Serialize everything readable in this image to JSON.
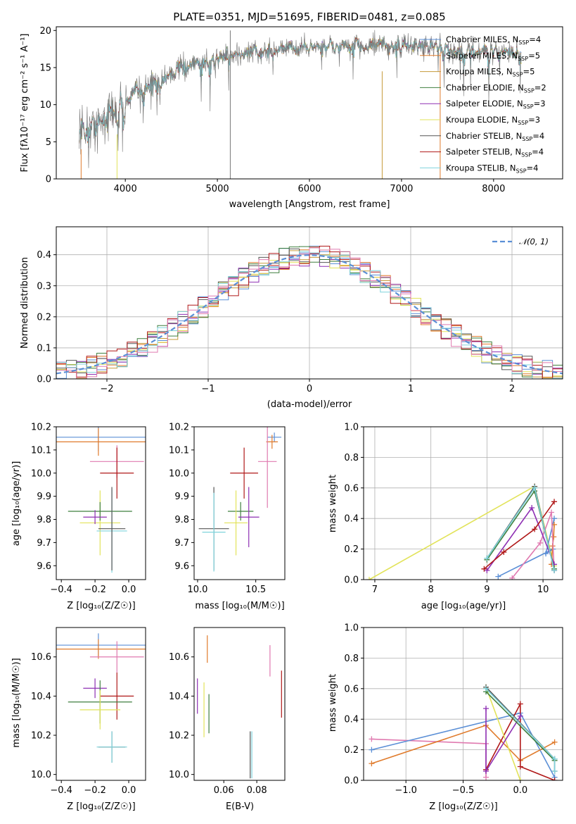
{
  "colors": {
    "Chabrier MILES": "#5b8fd6",
    "Salpeter MILES": "#e07b2c",
    "Kroupa MILES": "#c59a3a",
    "Chabrier ELODIE": "#3f7f3f",
    "Salpeter ELODIE": "#8e2fb3",
    "Kroupa ELODIE": "#e2e35a",
    "Chabrier STELIB": "#555555",
    "Salpeter STELIB": "#b01818",
    "Kroupa STELIB": "#7fd3dc",
    "pink": "#e07ab0",
    "normal": "#5b8fd6"
  },
  "chart_data": [
    {
      "id": "spectrum",
      "type": "line",
      "title": "PLATE=0351, MJD=51695, FIBERID=0481, z=0.085",
      "xlabel": "wavelength [Angstrom, rest frame]",
      "ylabel": "Flux [fλ10⁻¹⁷ erg cm⁻² s⁻¹ A⁻¹]",
      "xlim": [
        3250,
        8750
      ],
      "ylim": [
        0,
        20.5
      ],
      "xticks": [
        4000,
        5000,
        6000,
        7000,
        8000
      ],
      "yticks": [
        0,
        5,
        10,
        15,
        20
      ],
      "grid": false,
      "legend_position": "upper right",
      "legend": [
        {
          "name": "Chabrier MILES",
          "nssp": "4"
        },
        {
          "name": "Salpeter MILES",
          "nssp": "5"
        },
        {
          "name": "Kroupa MILES",
          "nssp": "5"
        },
        {
          "name": "Chabrier ELODIE",
          "nssp": "2"
        },
        {
          "name": "Salpeter ELODIE",
          "nssp": "3"
        },
        {
          "name": "Kroupa ELODIE",
          "nssp": "3"
        },
        {
          "name": "Chabrier STELIB",
          "nssp": "4"
        },
        {
          "name": "Salpeter STELIB",
          "nssp": "4"
        },
        {
          "name": "Kroupa STELIB",
          "nssp": "4"
        }
      ],
      "continuum": {
        "x": [
          3500,
          3700,
          3900,
          4100,
          4300,
          4600,
          5000,
          5400,
          5800,
          6200,
          6600,
          7000,
          7400,
          7800,
          8300
        ],
        "y": [
          6.5,
          7.5,
          9.0,
          11.5,
          13.0,
          14.8,
          16.3,
          17.0,
          17.6,
          17.9,
          18.0,
          17.9,
          17.6,
          17.3,
          17.0
        ]
      }
    },
    {
      "id": "residuals",
      "type": "histogram",
      "xlabel": "(data-model)/error",
      "ylabel": "Normed distribution",
      "xlim": [
        -2.5,
        2.5
      ],
      "ylim": [
        0,
        0.49
      ],
      "xticks": [
        -2,
        -1,
        0,
        1,
        2
      ],
      "yticks": [
        0.0,
        0.1,
        0.2,
        0.3,
        0.4
      ],
      "grid": true,
      "legend_position": "upper right",
      "legend_label": "𝒩(0, 1)",
      "bin_width": 0.1
    },
    {
      "id": "age_vs_Z",
      "type": "errorbar",
      "xlabel": "Z [log₁₀(Z/Z☉)]",
      "ylabel": "age  [log₁₀(age/yr)]",
      "xlim": [
        -0.43,
        0.1
      ],
      "ylim": [
        9.54,
        10.2
      ],
      "xticks": [
        -0.4,
        -0.2,
        0.0
      ],
      "yticks": [
        9.6,
        9.7,
        9.8,
        9.9,
        10.0,
        10.1,
        10.2
      ],
      "points": [
        {
          "c": "Chabrier MILES",
          "x": -0.18,
          "xerr": 0.28,
          "y": 10.155,
          "yerr": 0.06
        },
        {
          "c": "Salpeter MILES",
          "x": -0.18,
          "xerr": 0.28,
          "y": 10.135,
          "yerr": 0.06
        },
        {
          "c": "pink",
          "x": -0.07,
          "xerr": 0.16,
          "y": 10.05,
          "yerr": 0.07
        },
        {
          "c": "Salpeter STELIB",
          "x": -0.07,
          "xerr": 0.1,
          "y": 10.0,
          "yerr": 0.11
        },
        {
          "c": "Kroupa ELODIE",
          "x": -0.17,
          "xerr": 0.12,
          "y": 9.785,
          "yerr": 0.14
        },
        {
          "c": "Chabrier ELODIE",
          "x": -0.17,
          "xerr": 0.19,
          "y": 9.835,
          "yerr": 0.04
        },
        {
          "c": "Salpeter ELODIE",
          "x": -0.2,
          "xerr": 0.07,
          "y": 9.81,
          "yerr": 0.03
        },
        {
          "c": "Kroupa STELIB",
          "x": -0.1,
          "xerr": 0.09,
          "y": 9.75,
          "yerr": 0.18
        },
        {
          "c": "Chabrier STELIB",
          "x": -0.1,
          "xerr": 0.08,
          "y": 9.76,
          "yerr": 0.18
        }
      ]
    },
    {
      "id": "age_vs_mass",
      "type": "errorbar",
      "xlabel": "mass [log₁₀(M/M☉)]",
      "ylabel": "",
      "xlim": [
        9.97,
        10.75
      ],
      "ylim": [
        9.54,
        10.2
      ],
      "xticks": [
        10.0,
        10.5
      ],
      "yticks": [
        9.6,
        9.7,
        9.8,
        9.9,
        10.0,
        10.1,
        10.2
      ],
      "points": [
        {
          "c": "Chabrier MILES",
          "x": 10.66,
          "xerr": 0.06,
          "y": 10.155,
          "yerr": 0.02
        },
        {
          "c": "Salpeter MILES",
          "x": 10.64,
          "xerr": 0.05,
          "y": 10.135,
          "yerr": 0.03
        },
        {
          "c": "pink",
          "x": 10.6,
          "xerr": 0.08,
          "y": 10.05,
          "yerr": 0.2
        },
        {
          "c": "Salpeter STELIB",
          "x": 10.4,
          "xerr": 0.12,
          "y": 10.0,
          "yerr": 0.11
        },
        {
          "c": "Chabrier ELODIE",
          "x": 10.37,
          "xerr": 0.11,
          "y": 9.835,
          "yerr": 0.04
        },
        {
          "c": "Kroupa ELODIE",
          "x": 10.33,
          "xerr": 0.1,
          "y": 9.785,
          "yerr": 0.14
        },
        {
          "c": "Salpeter ELODIE",
          "x": 10.44,
          "xerr": 0.09,
          "y": 9.81,
          "yerr": 0.13
        },
        {
          "c": "Chabrier STELIB",
          "x": 10.14,
          "xerr": 0.13,
          "y": 9.76,
          "yerr": 0.18
        },
        {
          "c": "Kroupa STELIB",
          "x": 10.14,
          "xerr": 0.1,
          "y": 9.745,
          "yerr": 0.17
        }
      ]
    },
    {
      "id": "weight_vs_age",
      "type": "line",
      "xlabel": "age  [log₁₀(age/yr)]",
      "ylabel": "mass weight",
      "xlim": [
        6.8,
        10.35
      ],
      "ylim": [
        0,
        1
      ],
      "xticks": [
        7,
        8,
        9,
        10
      ],
      "yticks": [
        0.0,
        0.2,
        0.4,
        0.6,
        0.8,
        1.0
      ],
      "grid": true,
      "series": [
        {
          "c": "Kroupa ELODIE",
          "x": [
            6.9,
            9.85,
            10.2
          ],
          "y": [
            0.0,
            0.61,
            0.09
          ]
        },
        {
          "c": "Chabrier MILES",
          "x": [
            9.2,
            10.18,
            10.05,
            10.2
          ],
          "y": [
            0.02,
            0.2,
            0.17,
            0.4
          ]
        },
        {
          "c": "Salpeter MILES",
          "x": [
            10.15,
            10.17,
            10.19,
            10.2
          ],
          "y": [
            0.1,
            0.22,
            0.28,
            0.36
          ]
        },
        {
          "c": "pink",
          "x": [
            9.45,
            9.95,
            10.15,
            10.2
          ],
          "y": [
            0.01,
            0.24,
            0.44,
            0.06
          ]
        },
        {
          "c": "Salpeter ELODIE",
          "x": [
            9.0,
            9.8,
            10.2
          ],
          "y": [
            0.06,
            0.47,
            0.1
          ]
        },
        {
          "c": "Salpeter STELIB",
          "x": [
            8.95,
            9.3,
            9.85,
            10.2
          ],
          "y": [
            0.07,
            0.18,
            0.33,
            0.51
          ]
        },
        {
          "c": "Chabrier STELIB",
          "x": [
            9.0,
            9.85,
            10.2
          ],
          "y": [
            0.14,
            0.61,
            0.06
          ]
        },
        {
          "c": "Chabrier ELODIE",
          "x": [
            9.0,
            9.85,
            10.2
          ],
          "y": [
            0.13,
            0.58,
            0.07
          ]
        },
        {
          "c": "Kroupa STELIB",
          "x": [
            9.0,
            9.85,
            10.2
          ],
          "y": [
            0.14,
            0.6,
            0.06
          ]
        }
      ]
    },
    {
      "id": "mass_vs_Z",
      "type": "errorbar",
      "xlabel": "Z [log₁₀(Z/Z☉)]",
      "ylabel": "mass [log₁₀(M/M☉)]",
      "xlim": [
        -0.43,
        0.1
      ],
      "ylim": [
        9.97,
        10.75
      ],
      "xticks": [
        -0.4,
        -0.2,
        0.0
      ],
      "yticks": [
        10.0,
        10.2,
        10.4,
        10.6
      ],
      "points": [
        {
          "c": "Chabrier MILES",
          "x": -0.18,
          "xerr": 0.28,
          "y": 10.66,
          "yerr": 0.06
        },
        {
          "c": "Salpeter MILES",
          "x": -0.18,
          "xerr": 0.28,
          "y": 10.64,
          "yerr": 0.05
        },
        {
          "c": "pink",
          "x": -0.07,
          "xerr": 0.16,
          "y": 10.6,
          "yerr": 0.08
        },
        {
          "c": "Salpeter STELIB",
          "x": -0.07,
          "xerr": 0.1,
          "y": 10.4,
          "yerr": 0.12
        },
        {
          "c": "Salpeter ELODIE",
          "x": -0.2,
          "xerr": 0.07,
          "y": 10.44,
          "yerr": 0.05
        },
        {
          "c": "Chabrier ELODIE",
          "x": -0.17,
          "xerr": 0.19,
          "y": 10.37,
          "yerr": 0.11
        },
        {
          "c": "Kroupa ELODIE",
          "x": -0.17,
          "xerr": 0.12,
          "y": 10.33,
          "yerr": 0.1
        },
        {
          "c": "Chabrier STELIB",
          "x": -0.1,
          "xerr": 0.08,
          "y": 10.14,
          "yerr": 0.08
        },
        {
          "c": "Kroupa STELIB",
          "x": -0.1,
          "xerr": 0.09,
          "y": 10.14,
          "yerr": 0.08
        }
      ]
    },
    {
      "id": "mass_vs_ebv",
      "type": "errorbar",
      "xlabel": "E(B-V)",
      "ylabel": "",
      "xlim": [
        0.042,
        0.097
      ],
      "ylim": [
        9.97,
        10.75
      ],
      "xticks": [
        0.06,
        0.08
      ],
      "yticks": [
        10.0,
        10.2,
        10.4,
        10.6
      ],
      "points": [
        {
          "c": "Salpeter ELODIE",
          "x": 0.044,
          "xerr": 0,
          "y": 10.4,
          "yerr": 0.09
        },
        {
          "c": "Kroupa ELODIE",
          "x": 0.048,
          "xerr": 0,
          "y": 10.33,
          "yerr": 0.14
        },
        {
          "c": "Salpeter MILES",
          "x": 0.05,
          "xerr": 0,
          "y": 10.64,
          "yerr": 0.07
        },
        {
          "c": "Chabrier ELODIE",
          "x": 0.051,
          "xerr": 0,
          "y": 10.31,
          "yerr": 0.1
        },
        {
          "c": "Chabrier STELIB",
          "x": 0.076,
          "xerr": 0,
          "y": 10.1,
          "yerr": 0.12
        },
        {
          "c": "Kroupa STELIB",
          "x": 0.077,
          "xerr": 0,
          "y": 10.1,
          "yerr": 0.12
        },
        {
          "c": "pink",
          "x": 0.088,
          "xerr": 0,
          "y": 10.58,
          "yerr": 0.08
        },
        {
          "c": "Salpeter STELIB",
          "x": 0.095,
          "xerr": 0,
          "y": 10.41,
          "yerr": 0.12
        }
      ]
    },
    {
      "id": "weight_vs_Z",
      "type": "line",
      "xlabel": "Z [log₁₀(Z/Z☉)]",
      "ylabel": "mass weight",
      "xlim": [
        -1.37,
        0.37
      ],
      "ylim": [
        0,
        1
      ],
      "xticks": [
        -1.0,
        -0.5,
        0.0
      ],
      "yticks": [
        0.0,
        0.2,
        0.4,
        0.6,
        0.8,
        1.0
      ],
      "grid": true,
      "series": [
        {
          "c": "pink",
          "x": [
            -1.3,
            -0.3,
            -0.3
          ],
          "y": [
            0.27,
            0.24,
            0.02
          ]
        },
        {
          "c": "Chabrier MILES",
          "x": [
            -1.3,
            0.0,
            0.3
          ],
          "y": [
            0.2,
            0.44,
            0.02
          ]
        },
        {
          "c": "Salpeter MILES",
          "x": [
            -1.3,
            -0.3,
            0.0,
            0.3
          ],
          "y": [
            0.11,
            0.36,
            0.13,
            0.25
          ]
        },
        {
          "c": "Salpeter STELIB",
          "x": [
            -0.3,
            0.0,
            0.0,
            0.3
          ],
          "y": [
            0.07,
            0.5,
            0.09,
            0.0
          ]
        },
        {
          "c": "Kroupa ELODIE",
          "x": [
            -0.3,
            0.0
          ],
          "y": [
            0.61,
            0.0
          ]
        },
        {
          "c": "Salpeter ELODIE",
          "x": [
            -0.3,
            -0.3,
            0.0
          ],
          "y": [
            0.47,
            0.06,
            0.42
          ]
        },
        {
          "c": "Chabrier STELIB",
          "x": [
            -0.3,
            0.3,
            0.3
          ],
          "y": [
            0.61,
            0.14,
            0.06
          ]
        },
        {
          "c": "Chabrier ELODIE",
          "x": [
            -0.3,
            0.3
          ],
          "y": [
            0.58,
            0.13
          ]
        },
        {
          "c": "Kroupa STELIB",
          "x": [
            -0.3,
            0.3,
            0.3
          ],
          "y": [
            0.6,
            0.14,
            0.06
          ]
        }
      ]
    }
  ]
}
